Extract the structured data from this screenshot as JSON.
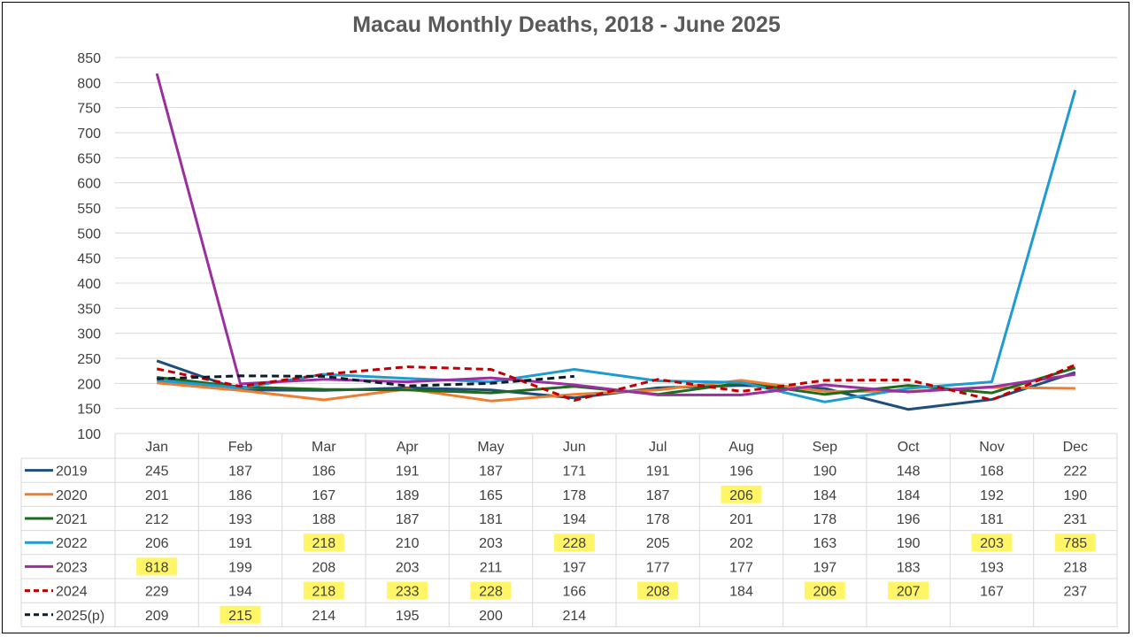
{
  "chart_data": {
    "type": "line",
    "title": "Macau Monthly Deaths, 2018 - June 2025",
    "categories": [
      "Jan",
      "Feb",
      "Mar",
      "Apr",
      "May",
      "Jun",
      "Jul",
      "Aug",
      "Sep",
      "Oct",
      "Nov",
      "Dec"
    ],
    "ylim": [
      100,
      850
    ],
    "yticks": [
      100,
      150,
      200,
      250,
      300,
      350,
      400,
      450,
      500,
      550,
      600,
      650,
      700,
      750,
      800,
      850
    ],
    "grid": true,
    "legend": "data-table",
    "series": [
      {
        "name": "2019",
        "color": "#1f4e79",
        "dash": false,
        "values": [
          245,
          187,
          186,
          191,
          187,
          171,
          191,
          196,
          190,
          148,
          168,
          222
        ],
        "highlight": []
      },
      {
        "name": "2020",
        "color": "#ed7d31",
        "dash": false,
        "values": [
          201,
          186,
          167,
          189,
          165,
          178,
          187,
          206,
          184,
          184,
          192,
          190
        ],
        "highlight": [
          7
        ]
      },
      {
        "name": "2021",
        "color": "#1e6b1e",
        "dash": false,
        "values": [
          212,
          193,
          188,
          187,
          181,
          194,
          178,
          201,
          178,
          196,
          181,
          231
        ],
        "highlight": []
      },
      {
        "name": "2022",
        "color": "#1f9bcf",
        "dash": false,
        "values": [
          206,
          191,
          218,
          210,
          203,
          228,
          205,
          202,
          163,
          190,
          203,
          785
        ],
        "highlight": [
          2,
          5,
          10,
          11
        ]
      },
      {
        "name": "2023",
        "color": "#9b2fa0",
        "dash": false,
        "values": [
          818,
          199,
          208,
          203,
          211,
          197,
          177,
          177,
          197,
          183,
          193,
          218
        ],
        "highlight": [
          0
        ]
      },
      {
        "name": "2024",
        "color": "#c00000",
        "dash": true,
        "values": [
          229,
          194,
          218,
          233,
          228,
          166,
          208,
          184,
          206,
          207,
          167,
          237
        ],
        "highlight": [
          2,
          3,
          4,
          6,
          8,
          9
        ]
      },
      {
        "name": "2025(p)",
        "color": "#0d1b2a",
        "dash": true,
        "values": [
          209,
          215,
          214,
          195,
          200,
          214,
          null,
          null,
          null,
          null,
          null,
          null
        ],
        "highlight": [
          1
        ]
      }
    ]
  }
}
